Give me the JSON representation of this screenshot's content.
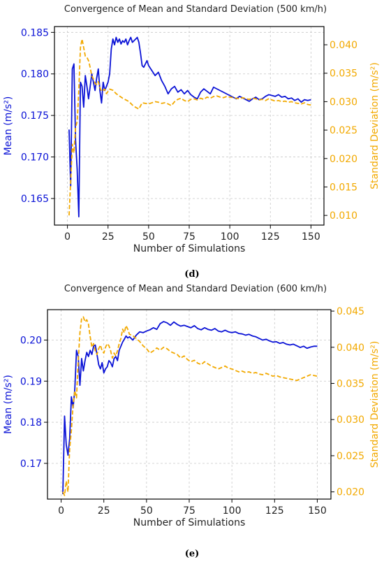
{
  "figure": {
    "colors": {
      "mean": "#0a12d6",
      "std": "#f2a900"
    },
    "chart_data": [
      {
        "type": "line",
        "title": "Convergence of Mean and Standard Deviation (500 km/h)",
        "caption": "(d)",
        "xlabel": "Number of Simulations",
        "ylabel_left": "Mean (m/s²)",
        "ylabel_right": "Standard Deviation (m/s²)",
        "xlim": [
          -8,
          158
        ],
        "ylim_left": [
          0.1618,
          0.1857
        ],
        "ylim_right": [
          0.0083,
          0.0432
        ],
        "xticks": [
          0,
          25,
          50,
          75,
          100,
          125,
          150
        ],
        "yticks_left": [
          0.165,
          0.17,
          0.175,
          0.18,
          0.185
        ],
        "yticks_left_labels": [
          "0.165",
          "0.170",
          "0.175",
          "0.180",
          "0.185"
        ],
        "yticks_right": [
          0.01,
          0.015,
          0.02,
          0.025,
          0.03,
          0.035,
          0.04
        ],
        "yticks_right_labels": [
          "0.010",
          "0.015",
          "0.020",
          "0.025",
          "0.030",
          "0.035",
          "0.040"
        ],
        "grid": true,
        "series": [
          {
            "axis": "left",
            "style": "solid",
            "x": [
              1,
              2,
              3,
              4,
              5,
              6,
              7,
              8,
              9,
              10,
              11,
              12,
              13,
              14,
              15,
              16,
              17,
              18,
              19,
              20,
              21,
              22,
              23,
              24,
              25,
              26,
              27,
              28,
              29,
              30,
              31,
              32,
              33,
              34,
              35,
              36,
              37,
              38,
              39,
              40,
              41,
              42,
              43,
              44,
              45,
              46,
              47,
              48,
              49,
              50,
              52,
              54,
              56,
              58,
              60,
              62,
              64,
              66,
              68,
              70,
              72,
              74,
              76,
              78,
              80,
              82,
              84,
              86,
              88,
              90,
              92,
              94,
              96,
              98,
              100,
              102,
              104,
              106,
              108,
              110,
              112,
              114,
              116,
              118,
              120,
              122,
              124,
              126,
              128,
              130,
              132,
              134,
              136,
              138,
              140,
              142,
              144,
              146,
              148,
              150
            ],
            "values": [
              0.1733,
              0.1665,
              0.1806,
              0.1812,
              0.172,
              0.1685,
              0.1628,
              0.179,
              0.1785,
              0.176,
              0.1798,
              0.1785,
              0.177,
              0.1785,
              0.18,
              0.179,
              0.178,
              0.1795,
              0.1806,
              0.178,
              0.1765,
              0.179,
              0.178,
              0.1785,
              0.179,
              0.18,
              0.183,
              0.1842,
              0.1835,
              0.1844,
              0.1838,
              0.1842,
              0.1836,
              0.184,
              0.1838,
              0.1842,
              0.1835,
              0.184,
              0.1844,
              0.1838,
              0.184,
              0.1842,
              0.1844,
              0.1838,
              0.1825,
              0.181,
              0.1808,
              0.1812,
              0.1816,
              0.181,
              0.1804,
              0.1798,
              0.1802,
              0.1792,
              0.1785,
              0.1776,
              0.1782,
              0.1785,
              0.1778,
              0.1781,
              0.1776,
              0.178,
              0.1775,
              0.1772,
              0.177,
              0.1778,
              0.1782,
              0.1779,
              0.1776,
              0.1784,
              0.1782,
              0.178,
              0.1778,
              0.1776,
              0.1774,
              0.1772,
              0.177,
              0.1773,
              0.1771,
              0.1769,
              0.1767,
              0.177,
              0.1772,
              0.1769,
              0.177,
              0.1773,
              0.1775,
              0.1774,
              0.1773,
              0.1775,
              0.1772,
              0.1773,
              0.177,
              0.1771,
              0.1768,
              0.177,
              0.1766,
              0.1769,
              0.1768,
              0.1769
            ]
          },
          {
            "axis": "right",
            "style": "dashed",
            "x": [
              1,
              2,
              3,
              4,
              5,
              6,
              7,
              8,
              9,
              10,
              11,
              12,
              13,
              14,
              15,
              16,
              17,
              18,
              19,
              20,
              21,
              22,
              23,
              24,
              25,
              26,
              28,
              30,
              32,
              34,
              36,
              38,
              40,
              42,
              44,
              46,
              48,
              50,
              52,
              54,
              56,
              58,
              60,
              62,
              64,
              66,
              68,
              70,
              72,
              74,
              76,
              78,
              80,
              82,
              84,
              86,
              88,
              90,
              92,
              94,
              96,
              98,
              100,
              102,
              104,
              106,
              108,
              110,
              112,
              114,
              116,
              118,
              120,
              122,
              124,
              126,
              128,
              130,
              132,
              134,
              136,
              138,
              140,
              142,
              144,
              146,
              148,
              150
            ],
            "values": [
              0.01,
              0.016,
              0.0225,
              0.021,
              0.0255,
              0.0265,
              0.032,
              0.0395,
              0.041,
              0.0395,
              0.038,
              0.0378,
              0.0372,
              0.036,
              0.0345,
              0.034,
              0.0332,
              0.033,
              0.0335,
              0.0325,
              0.0318,
              0.032,
              0.0322,
              0.0314,
              0.0318,
              0.0322,
              0.032,
              0.0314,
              0.031,
              0.0306,
              0.0303,
              0.03,
              0.0294,
              0.029,
              0.0287,
              0.0298,
              0.0297,
              0.0296,
              0.0298,
              0.03,
              0.0299,
              0.0297,
              0.0298,
              0.0296,
              0.0293,
              0.03,
              0.0304,
              0.0306,
              0.0302,
              0.03,
              0.0304,
              0.0305,
              0.0303,
              0.0306,
              0.0304,
              0.0308,
              0.0306,
              0.0309,
              0.031,
              0.0308,
              0.0307,
              0.0309,
              0.0308,
              0.0307,
              0.0306,
              0.0305,
              0.0307,
              0.0305,
              0.0304,
              0.0306,
              0.0305,
              0.0303,
              0.0304,
              0.0302,
              0.0305,
              0.0303,
              0.0301,
              0.0302,
              0.03,
              0.0301,
              0.0299,
              0.03,
              0.0298,
              0.0297,
              0.0296,
              0.0298,
              0.0295,
              0.0294
            ]
          }
        ]
      },
      {
        "type": "line",
        "title": "Convergence of Mean and Standard Deviation (600 km/h)",
        "caption": "(e)",
        "xlabel": "Number of Simulations",
        "ylabel_left": "Mean (m/s²)",
        "ylabel_right": "Standard Deviation (m/s²)",
        "xlim": [
          -8,
          158
        ],
        "ylim_left": [
          0.1613,
          0.2074
        ],
        "ylim_right": [
          0.019,
          0.0452
        ],
        "xticks": [
          0,
          25,
          50,
          75,
          100,
          125,
          150
        ],
        "yticks_left": [
          0.17,
          0.18,
          0.19,
          0.2
        ],
        "yticks_left_labels": [
          "0.17",
          "0.18",
          "0.19",
          "0.20"
        ],
        "yticks_right": [
          0.02,
          0.025,
          0.03,
          0.035,
          0.04,
          0.045
        ],
        "yticks_right_labels": [
          "0.020",
          "0.025",
          "0.030",
          "0.035",
          "0.040",
          "0.045"
        ],
        "grid": true,
        "series": [
          {
            "axis": "left",
            "style": "solid",
            "x": [
              1,
              2,
              3,
              4,
              5,
              6,
              7,
              8,
              9,
              10,
              11,
              12,
              13,
              14,
              15,
              16,
              17,
              18,
              19,
              20,
              21,
              22,
              23,
              24,
              25,
              26,
              27,
              28,
              29,
              30,
              31,
              32,
              33,
              34,
              35,
              36,
              37,
              38,
              39,
              40,
              42,
              44,
              46,
              48,
              50,
              52,
              54,
              56,
              58,
              60,
              62,
              64,
              66,
              68,
              70,
              72,
              74,
              76,
              78,
              80,
              82,
              84,
              86,
              88,
              90,
              92,
              94,
              96,
              98,
              100,
              102,
              104,
              106,
              108,
              110,
              112,
              114,
              116,
              118,
              120,
              122,
              124,
              126,
              128,
              130,
              132,
              134,
              136,
              138,
              140,
              142,
              144,
              146,
              148,
              150
            ],
            "values": [
              0.1625,
              0.1815,
              0.1745,
              0.172,
              0.176,
              0.1862,
              0.1835,
              0.188,
              0.1975,
              0.196,
              0.189,
              0.1955,
              0.1925,
              0.195,
              0.197,
              0.196,
              0.1975,
              0.1965,
              0.1985,
              0.1988,
              0.1965,
              0.194,
              0.193,
              0.1945,
              0.192,
              0.193,
              0.1935,
              0.195,
              0.1945,
              0.1935,
              0.1955,
              0.196,
              0.195,
              0.1975,
              0.1985,
              0.1995,
              0.2002,
              0.201,
              0.2005,
              0.2008,
              0.2,
              0.2012,
              0.202,
              0.2018,
              0.2022,
              0.2025,
              0.203,
              0.2026,
              0.204,
              0.2045,
              0.2042,
              0.2036,
              0.2044,
              0.2038,
              0.2034,
              0.2036,
              0.2033,
              0.203,
              0.2035,
              0.2028,
              0.2025,
              0.203,
              0.2026,
              0.2024,
              0.2028,
              0.2022,
              0.202,
              0.2024,
              0.202,
              0.2018,
              0.202,
              0.2016,
              0.2015,
              0.2012,
              0.2014,
              0.201,
              0.2008,
              0.2004,
              0.2,
              0.2002,
              0.1998,
              0.1995,
              0.1996,
              0.1992,
              0.1994,
              0.199,
              0.1988,
              0.199,
              0.1986,
              0.1982,
              0.1985,
              0.198,
              0.1983,
              0.1985,
              0.1985
            ]
          },
          {
            "axis": "right",
            "style": "dashed",
            "x": [
              1,
              2,
              3,
              4,
              5,
              6,
              7,
              8,
              9,
              10,
              11,
              12,
              13,
              14,
              15,
              16,
              17,
              18,
              19,
              20,
              21,
              22,
              23,
              24,
              25,
              26,
              27,
              28,
              29,
              30,
              31,
              32,
              33,
              34,
              35,
              36,
              37,
              38,
              39,
              40,
              42,
              44,
              46,
              48,
              50,
              52,
              54,
              56,
              58,
              60,
              62,
              64,
              66,
              68,
              70,
              72,
              74,
              76,
              78,
              80,
              82,
              84,
              86,
              88,
              90,
              92,
              94,
              96,
              98,
              100,
              102,
              104,
              106,
              108,
              110,
              112,
              114,
              116,
              118,
              120,
              122,
              124,
              126,
              128,
              130,
              132,
              134,
              136,
              138,
              140,
              142,
              144,
              146,
              148,
              150
            ],
            "values": [
              0.02,
              0.0195,
              0.0215,
              0.02,
              0.026,
              0.0285,
              0.032,
              0.034,
              0.033,
              0.038,
              0.042,
              0.044,
              0.0442,
              0.0435,
              0.0438,
              0.0432,
              0.0415,
              0.04,
              0.0405,
              0.0395,
              0.039,
              0.0398,
              0.0403,
              0.0395,
              0.0392,
              0.04,
              0.0405,
              0.0402,
              0.0395,
              0.0385,
              0.0392,
              0.0388,
              0.0395,
              0.0405,
              0.0412,
              0.0425,
              0.042,
              0.043,
              0.0425,
              0.0418,
              0.0416,
              0.0412,
              0.0408,
              0.0402,
              0.0398,
              0.0392,
              0.0395,
              0.0399,
              0.0396,
              0.04,
              0.0398,
              0.0394,
              0.0392,
              0.039,
              0.0385,
              0.0388,
              0.0383,
              0.038,
              0.0382,
              0.0378,
              0.0376,
              0.038,
              0.0377,
              0.0374,
              0.0372,
              0.037,
              0.0372,
              0.0374,
              0.0371,
              0.037,
              0.0368,
              0.0366,
              0.0367,
              0.0365,
              0.0366,
              0.0364,
              0.0365,
              0.0363,
              0.0362,
              0.0364,
              0.0362,
              0.036,
              0.0361,
              0.0359,
              0.0358,
              0.0357,
              0.0356,
              0.0355,
              0.0354,
              0.0356,
              0.0358,
              0.036,
              0.0362,
              0.0361,
              0.036
            ]
          }
        ]
      }
    ]
  }
}
